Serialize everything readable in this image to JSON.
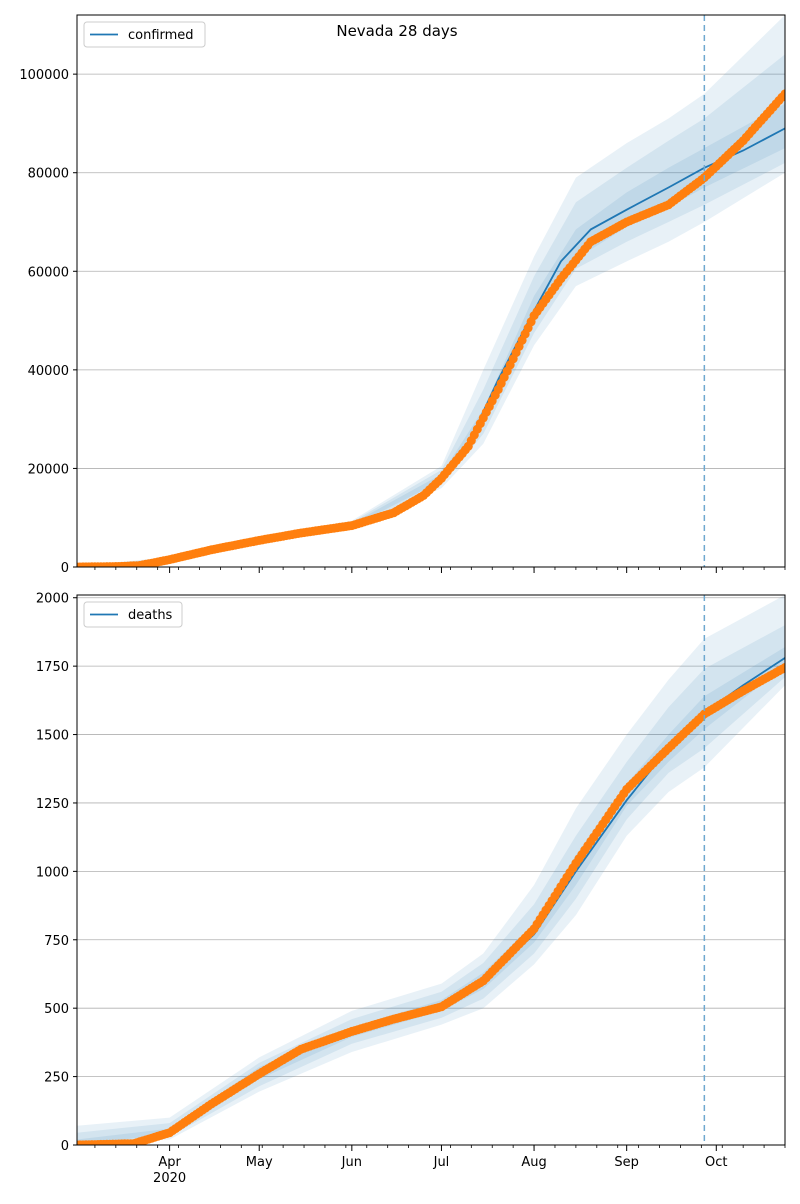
{
  "chart_data": [
    {
      "type": "line",
      "title": "Nevada 28 days",
      "xlabel": "",
      "ylabel": "",
      "x_start": "2020-03-01",
      "x_end": "2020-10-24",
      "forecast_start": "2020-09-27",
      "ylim": [
        0,
        112000
      ],
      "yticks": [
        0,
        20000,
        40000,
        60000,
        80000,
        100000
      ],
      "ytick_labels": [
        "0",
        "20000",
        "40000",
        "60000",
        "80000",
        "100000"
      ],
      "grid": "horizontal",
      "legend": {
        "position": "top-left",
        "entries": [
          "confirmed"
        ]
      },
      "colors": {
        "model": "#1f77b4",
        "observed": "#ff7f0e",
        "band": "#1f77b4",
        "forecast_line": "#1f77b4"
      },
      "series": [
        {
          "name": "confirmed",
          "x": [
            "2020-03-01",
            "2020-03-15",
            "2020-03-22",
            "2020-04-01",
            "2020-04-15",
            "2020-05-01",
            "2020-05-15",
            "2020-06-01",
            "2020-06-15",
            "2020-06-25",
            "2020-07-01",
            "2020-07-10",
            "2020-07-20",
            "2020-08-01",
            "2020-08-10",
            "2020-08-20",
            "2020-09-01",
            "2020-09-15",
            "2020-09-27",
            "2020-10-10",
            "2020-10-24"
          ],
          "y": [
            0,
            100,
            300,
            1600,
            3600,
            5500,
            6900,
            8500,
            11000,
            14500,
            18000,
            25000,
            38000,
            52000,
            62000,
            68500,
            72500,
            77000,
            81000,
            84500,
            89000
          ]
        },
        {
          "name": "observed",
          "x": [
            "2020-03-01",
            "2020-03-15",
            "2020-03-22",
            "2020-04-01",
            "2020-04-15",
            "2020-05-01",
            "2020-05-15",
            "2020-06-01",
            "2020-06-15",
            "2020-06-25",
            "2020-07-01",
            "2020-07-10",
            "2020-07-20",
            "2020-08-01",
            "2020-08-10",
            "2020-08-20",
            "2020-09-01",
            "2020-09-15",
            "2020-09-27",
            "2020-10-10",
            "2020-10-24"
          ],
          "y": [
            0,
            100,
            300,
            1500,
            3500,
            5400,
            6900,
            8400,
            11000,
            14500,
            18000,
            24500,
            36000,
            51000,
            58500,
            66000,
            70000,
            73500,
            79000,
            86500,
            96000
          ]
        }
      ],
      "bands": [
        {
          "x": [
            "2020-03-01",
            "2020-04-01",
            "2020-05-01",
            "2020-06-01",
            "2020-07-01",
            "2020-07-15",
            "2020-08-01",
            "2020-08-15",
            "2020-09-01",
            "2020-09-15",
            "2020-09-27",
            "2020-10-24"
          ],
          "low": [
            0,
            1300,
            4700,
            7600,
            16000,
            25000,
            45000,
            57000,
            62000,
            66000,
            70000,
            80000
          ],
          "high": [
            200,
            2000,
            6200,
            9400,
            20500,
            40000,
            63000,
            79000,
            86000,
            91000,
            96000,
            112000
          ]
        },
        {
          "x": [
            "2020-03-01",
            "2020-04-01",
            "2020-05-01",
            "2020-06-01",
            "2020-07-01",
            "2020-07-15",
            "2020-08-01",
            "2020-08-15",
            "2020-09-01",
            "2020-09-15",
            "2020-09-27",
            "2020-10-24"
          ],
          "low": [
            0,
            1400,
            4900,
            7900,
            16800,
            27000,
            47500,
            60500,
            66000,
            70000,
            73500,
            82000
          ],
          "high": [
            150,
            1850,
            6000,
            9100,
            19700,
            36000,
            59000,
            74000,
            81000,
            86500,
            91000,
            104000
          ]
        },
        {
          "x": [
            "2020-03-01",
            "2020-04-01",
            "2020-05-01",
            "2020-06-01",
            "2020-07-01",
            "2020-07-15",
            "2020-08-01",
            "2020-08-15",
            "2020-09-01",
            "2020-09-15",
            "2020-09-27",
            "2020-10-24"
          ],
          "low": [
            0,
            1500,
            5100,
            8200,
            17500,
            29000,
            49500,
            62500,
            69000,
            73000,
            77000,
            85000
          ],
          "high": [
            100,
            1700,
            5800,
            8800,
            18800,
            32000,
            55000,
            68500,
            76000,
            81000,
            85000,
            94000
          ]
        }
      ]
    },
    {
      "type": "line",
      "title": "",
      "xlabel": "",
      "ylabel": "",
      "x_start": "2020-03-01",
      "x_end": "2020-10-24",
      "forecast_start": "2020-09-27",
      "ylim": [
        0,
        2010
      ],
      "yticks": [
        0,
        250,
        500,
        750,
        1000,
        1250,
        1500,
        1750,
        2000
      ],
      "ytick_labels": [
        "0",
        "250",
        "500",
        "750",
        "1000",
        "1250",
        "1500",
        "1750",
        "2000"
      ],
      "grid": "horizontal",
      "legend": {
        "position": "top-left",
        "entries": [
          "deaths"
        ]
      },
      "colors": {
        "model": "#1f77b4",
        "observed": "#ff7f0e",
        "band": "#1f77b4",
        "forecast_line": "#1f77b4"
      },
      "series": [
        {
          "name": "deaths",
          "x": [
            "2020-03-01",
            "2020-03-20",
            "2020-04-01",
            "2020-04-15",
            "2020-05-01",
            "2020-05-15",
            "2020-06-01",
            "2020-06-15",
            "2020-07-01",
            "2020-07-15",
            "2020-08-01",
            "2020-08-15",
            "2020-09-01",
            "2020-09-15",
            "2020-09-27",
            "2020-10-10",
            "2020-10-24"
          ],
          "y": [
            0,
            5,
            50,
            150,
            265,
            355,
            415,
            460,
            510,
            600,
            770,
            1000,
            1260,
            1450,
            1580,
            1680,
            1780
          ]
        },
        {
          "name": "observed",
          "x": [
            "2020-03-01",
            "2020-03-20",
            "2020-04-01",
            "2020-04-15",
            "2020-05-01",
            "2020-05-15",
            "2020-06-01",
            "2020-06-15",
            "2020-07-01",
            "2020-07-15",
            "2020-08-01",
            "2020-08-15",
            "2020-09-01",
            "2020-09-15",
            "2020-09-27",
            "2020-10-10",
            "2020-10-24"
          ],
          "y": [
            0,
            5,
            45,
            150,
            260,
            350,
            415,
            460,
            505,
            600,
            790,
            1030,
            1300,
            1450,
            1575,
            1660,
            1745
          ]
        }
      ],
      "bands": [
        {
          "x": [
            "2020-03-01",
            "2020-04-01",
            "2020-05-01",
            "2020-06-01",
            "2020-07-01",
            "2020-07-15",
            "2020-08-01",
            "2020-08-15",
            "2020-09-01",
            "2020-09-15",
            "2020-09-27",
            "2020-10-24"
          ],
          "low": [
            0,
            20,
            195,
            340,
            440,
            500,
            660,
            840,
            1130,
            1290,
            1380,
            1680
          ],
          "high": [
            70,
            100,
            320,
            490,
            590,
            700,
            950,
            1230,
            1500,
            1700,
            1850,
            2010
          ]
        },
        {
          "x": [
            "2020-03-01",
            "2020-04-01",
            "2020-05-01",
            "2020-06-01",
            "2020-07-01",
            "2020-07-15",
            "2020-08-01",
            "2020-08-15",
            "2020-09-01",
            "2020-09-15",
            "2020-09-27",
            "2020-10-24"
          ],
          "low": [
            0,
            30,
            215,
            370,
            465,
            535,
            700,
            900,
            1190,
            1360,
            1450,
            1710
          ],
          "high": [
            45,
            80,
            300,
            460,
            560,
            665,
            880,
            1130,
            1400,
            1600,
            1740,
            1900
          ]
        },
        {
          "x": [
            "2020-03-01",
            "2020-04-01",
            "2020-05-01",
            "2020-06-01",
            "2020-07-01",
            "2020-07-15",
            "2020-08-01",
            "2020-08-15",
            "2020-09-01",
            "2020-09-15",
            "2020-09-27",
            "2020-10-24"
          ],
          "low": [
            0,
            40,
            240,
            395,
            490,
            570,
            740,
            950,
            1240,
            1400,
            1520,
            1750
          ],
          "high": [
            20,
            60,
            285,
            430,
            530,
            630,
            810,
            1060,
            1320,
            1500,
            1640,
            1820
          ]
        }
      ]
    }
  ],
  "x_axis": {
    "month_ticks": [
      {
        "date": "2020-04-01",
        "label": "Apr"
      },
      {
        "date": "2020-05-01",
        "label": "May"
      },
      {
        "date": "2020-06-01",
        "label": "Jun"
      },
      {
        "date": "2020-07-01",
        "label": "Jul"
      },
      {
        "date": "2020-08-01",
        "label": "Aug"
      },
      {
        "date": "2020-09-01",
        "label": "Sep"
      },
      {
        "date": "2020-10-01",
        "label": "Oct"
      }
    ],
    "year_label": "2020",
    "minor_tick_interval": "weekly"
  }
}
